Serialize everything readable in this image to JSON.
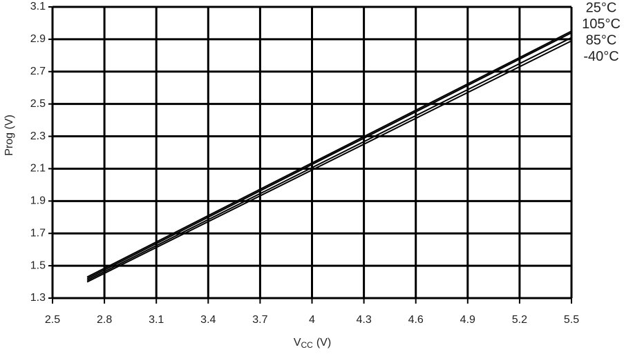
{
  "chart_data": {
    "type": "line",
    "x_label": {
      "symbol": "V",
      "subscript": "CC",
      "unit": "(V)"
    },
    "y_label": "Prog (V)",
    "x": [
      2.7,
      5.5
    ],
    "series": [
      {
        "name": "25°C",
        "color": "#000000",
        "values": [
          1.43,
          2.95
        ]
      },
      {
        "name": "105°C",
        "color": "#000000",
        "values": [
          1.42,
          2.94
        ]
      },
      {
        "name": "85°C",
        "color": "#000000",
        "values": [
          1.41,
          2.91
        ]
      },
      {
        "name": "-40°C",
        "color": "#000000",
        "values": [
          1.4,
          2.89
        ]
      }
    ],
    "xlim": [
      2.5,
      5.5
    ],
    "xticks": [
      2.5,
      2.8,
      3.1,
      3.4,
      3.7,
      4,
      4.3,
      4.6,
      4.9,
      5.2,
      5.5
    ],
    "ylim": [
      1.3,
      3.1
    ],
    "yticks": [
      1.3,
      1.5,
      1.7,
      1.9,
      2.1,
      2.3,
      2.5,
      2.7,
      2.9,
      3.1
    ],
    "grid": true,
    "legend": "right"
  }
}
